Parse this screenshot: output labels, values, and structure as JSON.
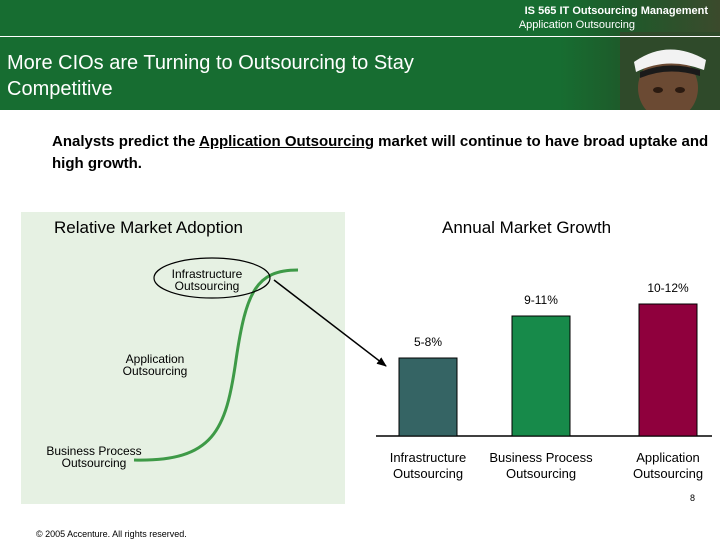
{
  "header": {
    "course": "IS 565 IT Outsourcing Management",
    "subject": "Application Outsourcing",
    "title_line1": "More CIOs are Turning to Outsourcing to Stay",
    "title_line2": "Competitive"
  },
  "lead": {
    "before": "Analysts predict the ",
    "emphasis": "Application Outsourcing",
    "after": " market will continue to have broad uptake and high growth."
  },
  "adoption": {
    "heading": "Relative Market Adoption",
    "labels": [
      {
        "line1": "Infrastructure",
        "line2": "Outsourcing"
      },
      {
        "line1": "Application",
        "line2": "Outsourcing"
      },
      {
        "line1": "Business Process",
        "line2": "Outsourcing"
      }
    ]
  },
  "chart_data": {
    "type": "bar",
    "title": "Annual Market Growth",
    "categories": [
      "Infrastructure Outsourcing",
      "Business Process Outsourcing",
      "Application Outsourcing"
    ],
    "category_lines": [
      [
        "Infrastructure",
        "Outsourcing"
      ],
      [
        "Business Process",
        "Outsourcing"
      ],
      [
        "Application",
        "Outsourcing"
      ]
    ],
    "data_labels": [
      "5-8%",
      "9-11%",
      "10-12%"
    ],
    "values": [
      6.5,
      10,
      11
    ],
    "ranges": [
      [
        5,
        8
      ],
      [
        9,
        11
      ],
      [
        10,
        12
      ]
    ],
    "colors": [
      "#356464",
      "#178a4a",
      "#8f003d"
    ],
    "ylim": [
      0,
      12
    ]
  },
  "footer": {
    "copyright": "© 2005 Accenture. All rights reserved.",
    "page": "8"
  }
}
